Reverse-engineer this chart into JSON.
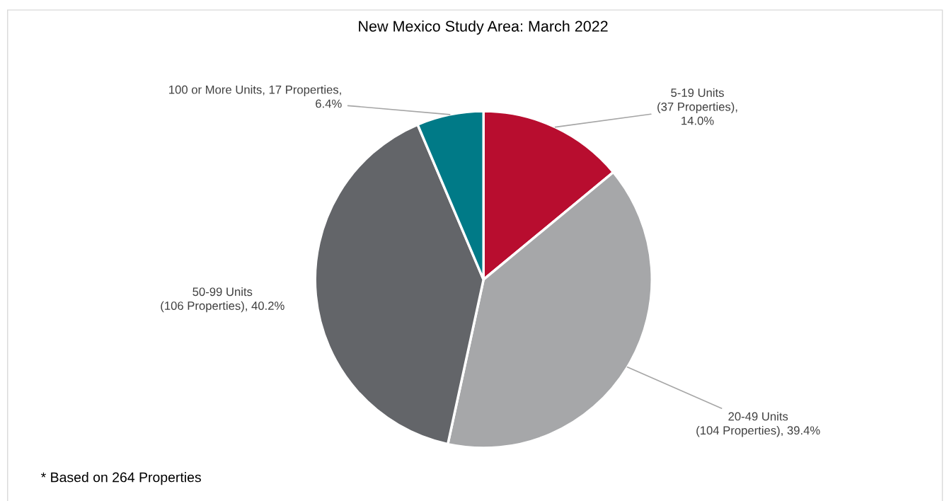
{
  "chart_data": {
    "type": "pie",
    "title": "New Mexico Study Area: March 2022",
    "categories": [
      "5-19 Units\n(37 Properties),\n14.0%",
      "20-49 Units\n(104 Properties), 39.4%",
      "50-99 Units\n(106 Properties), 40.2%",
      "100 or More Units, 17 Properties,\n6.4%"
    ],
    "values": [
      14.0,
      39.4,
      40.2,
      6.4
    ],
    "colors": [
      "#b80d2f",
      "#a6a7a9",
      "#636569",
      "#007a87"
    ],
    "annotations": [
      "* Based on 264 Properties"
    ],
    "legend": false
  }
}
